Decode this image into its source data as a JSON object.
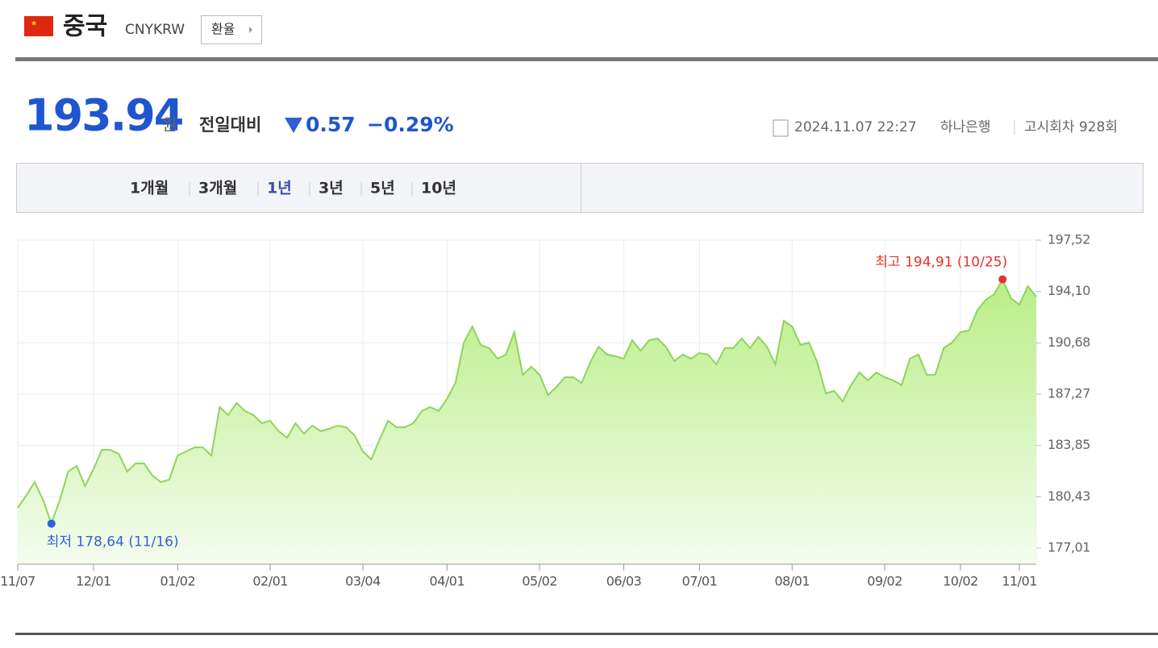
{
  "header": {
    "country": "중국",
    "code": "CNYKRW",
    "button": "환율"
  },
  "quote": {
    "price": "193.94",
    "unit": "원",
    "change_label": "전일대비",
    "change": "0.57",
    "change_pct": "−0.29%"
  },
  "info": {
    "datetime": "2024.11.07 22:27",
    "bank": "하나은행",
    "round": "고시회차 928회"
  },
  "tabs": {
    "items": [
      "1개월",
      "3개월",
      "1년",
      "3년",
      "5년",
      "10년"
    ],
    "active": 2
  },
  "chart_data": {
    "type": "area",
    "categories": [
      "11/07",
      null,
      null,
      null,
      null,
      null,
      null,
      null,
      null,
      "12/01",
      null,
      null,
      null,
      null,
      null,
      null,
      null,
      null,
      null,
      "01/02",
      null,
      null,
      null,
      null,
      null,
      null,
      null,
      null,
      null,
      null,
      "02/01",
      null,
      null,
      null,
      null,
      null,
      null,
      null,
      null,
      null,
      null,
      "03/04",
      null,
      null,
      null,
      null,
      null,
      null,
      null,
      null,
      null,
      "04/01",
      null,
      null,
      null,
      null,
      null,
      null,
      null,
      null,
      null,
      null,
      "05/02",
      null,
      null,
      null,
      null,
      null,
      null,
      null,
      null,
      null,
      "06/03",
      null,
      null,
      null,
      null,
      null,
      null,
      null,
      null,
      "07/01",
      null,
      null,
      null,
      null,
      null,
      null,
      null,
      null,
      null,
      null,
      "08/01",
      null,
      null,
      null,
      null,
      null,
      null,
      null,
      null,
      null,
      null,
      "09/02",
      null,
      null,
      null,
      null,
      null,
      null,
      null,
      null,
      "10/02",
      null,
      null,
      null,
      null,
      null,
      null,
      "11/01",
      null,
      null
    ],
    "series": [
      {
        "color": "#8fd45a",
        "values": [
          179.69,
          180.5,
          181.41,
          180.23,
          178.64,
          180.23,
          182.11,
          182.49,
          181.14,
          182.27,
          183.56,
          183.56,
          183.29,
          182.11,
          182.65,
          182.65,
          181.84,
          181.41,
          181.57,
          183.18,
          183.45,
          183.72,
          183.72,
          183.18,
          186.41,
          185.87,
          186.68,
          186.14,
          185.87,
          185.33,
          185.49,
          184.8,
          184.37,
          185.33,
          184.63,
          185.17,
          184.8,
          184.96,
          185.17,
          185.06,
          184.53,
          183.45,
          182.92,
          184.26,
          185.49,
          185.06,
          185.06,
          185.33,
          186.14,
          186.41,
          186.14,
          186.94,
          188.02,
          190.7,
          191.77,
          190.54,
          190.33,
          189.63,
          189.9,
          191.4,
          188.55,
          189.09,
          188.55,
          187.21,
          187.74,
          188.39,
          188.39,
          188.02,
          189.36,
          190.43,
          189.9,
          189.79,
          189.63,
          190.86,
          190.16,
          190.86,
          190.97,
          190.43,
          189.47,
          189.9,
          189.63,
          190.0,
          189.9,
          189.25,
          190.33,
          190.33,
          190.97,
          190.33,
          191.08,
          190.43,
          189.25,
          192.15,
          191.77,
          190.54,
          190.7,
          189.36,
          187.32,
          187.48,
          186.78,
          187.86,
          188.71,
          188.18,
          188.71,
          188.39,
          188.18,
          187.86,
          189.63,
          189.9,
          188.55,
          188.55,
          190.33,
          190.7,
          191.4,
          191.5,
          192.85,
          193.55,
          193.92,
          194.91,
          193.65,
          193.22,
          194.46,
          193.76
        ]
      }
    ],
    "ylim": [
      175.94,
      197.52
    ],
    "yticks": [
      {
        "value": 177.01,
        "label": "177,01"
      },
      {
        "value": 180.43,
        "label": "180,43"
      },
      {
        "value": 183.85,
        "label": "183,85"
      },
      {
        "value": 187.27,
        "label": "187,27"
      },
      {
        "value": 190.68,
        "label": "190,68"
      },
      {
        "value": 194.1,
        "label": "194,10"
      },
      {
        "value": 197.52,
        "label": "197,52"
      }
    ],
    "grid": true,
    "annotations": [
      {
        "text": "최저 178,64 (11/16)",
        "index": 4,
        "color": "#2d63d6"
      },
      {
        "text": "최고 194,91 (10/25)",
        "index": 117,
        "color": "#e8322f"
      }
    ]
  }
}
